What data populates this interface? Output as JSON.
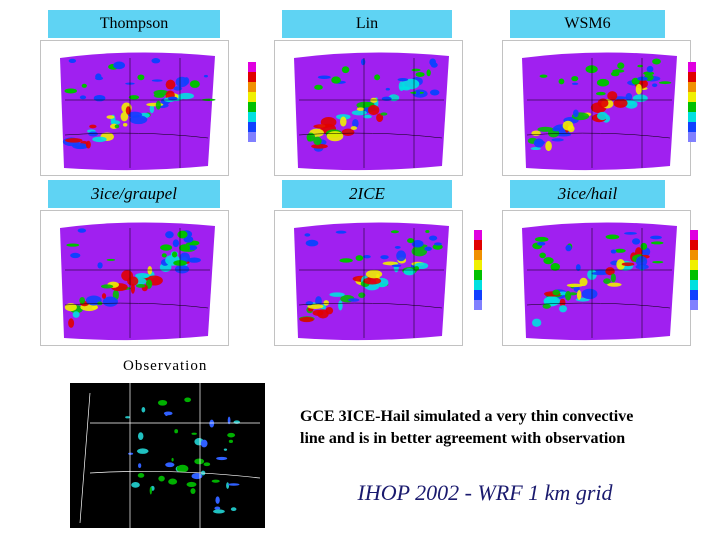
{
  "panels": [
    {
      "label": "Thompson"
    },
    {
      "label": "Lin"
    },
    {
      "label": "WSM6"
    },
    {
      "label": "3ice/graupel"
    },
    {
      "label": "2ICE"
    },
    {
      "label": "3ice/hail"
    }
  ],
  "observation": {
    "label": "Observation"
  },
  "caption": {
    "lines": [
      "GCE 3ICE-Hail simulated a very thin convective",
      "line and is in better agreement with observation"
    ]
  },
  "footer": {
    "title": "IHOP 2002 - WRF 1 km grid"
  }
}
